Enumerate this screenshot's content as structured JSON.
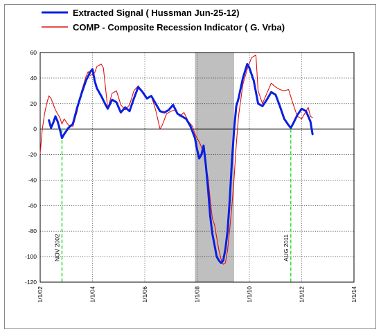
{
  "chart_data": {
    "type": "line",
    "title": "",
    "xlabel": "",
    "ylabel": "",
    "xlim": [
      "2002-01-01",
      "2014-01-01"
    ],
    "ylim": [
      -120,
      60
    ],
    "y_ticks": [
      60,
      40,
      20,
      0,
      -20,
      -40,
      -60,
      -80,
      -100,
      -120
    ],
    "x_ticks": [
      "2002-01-01",
      "2004-01-01",
      "2006-01-01",
      "2008-01-01",
      "2010-01-01",
      "2012-01-01",
      "2014-01-01"
    ],
    "x_tick_labels": [
      "1/1/02",
      "1/1/04",
      "1/1/06",
      "1/1/08",
      "1/1/10",
      "1/1/12",
      "1/1/14"
    ],
    "grid": true,
    "legend": "top-left",
    "recession_band": {
      "start": "2007-12-01",
      "end": "2009-06-01",
      "color": "#bfbfbf"
    },
    "annotations": [
      {
        "date": "2002-11-01",
        "label": "NOV 2002",
        "color": "#33dd33"
      },
      {
        "date": "2011-08-01",
        "label": "AUG 2011",
        "color": "#33dd33"
      }
    ],
    "series": [
      {
        "name": "Extracted Signal  ( Hussman Jun-25-12)",
        "color": "#0a1fe0",
        "points": [
          [
            "2002-05-01",
            7
          ],
          [
            "2002-06-01",
            1
          ],
          [
            "2002-07-01",
            5
          ],
          [
            "2002-08-01",
            10
          ],
          [
            "2002-09-01",
            6
          ],
          [
            "2002-10-01",
            0
          ],
          [
            "2002-11-01",
            -7
          ],
          [
            "2002-12-01",
            -4
          ],
          [
            "2003-02-01",
            1
          ],
          [
            "2003-04-01",
            4
          ],
          [
            "2003-06-01",
            17
          ],
          [
            "2003-08-01",
            28
          ],
          [
            "2003-10-01",
            38
          ],
          [
            "2003-12-01",
            45
          ],
          [
            "2004-01-01",
            47
          ],
          [
            "2004-02-01",
            38
          ],
          [
            "2004-03-01",
            32
          ],
          [
            "2004-05-01",
            26
          ],
          [
            "2004-07-01",
            19
          ],
          [
            "2004-08-01",
            16
          ],
          [
            "2004-10-01",
            23
          ],
          [
            "2004-12-01",
            21
          ],
          [
            "2005-02-01",
            13
          ],
          [
            "2005-04-01",
            17
          ],
          [
            "2005-06-01",
            14
          ],
          [
            "2005-08-01",
            24
          ],
          [
            "2005-10-01",
            33
          ],
          [
            "2005-12-01",
            29
          ],
          [
            "2006-02-01",
            24
          ],
          [
            "2006-04-01",
            26
          ],
          [
            "2006-06-01",
            20
          ],
          [
            "2006-08-01",
            14
          ],
          [
            "2006-10-01",
            13
          ],
          [
            "2006-12-01",
            15
          ],
          [
            "2007-02-01",
            19
          ],
          [
            "2007-04-01",
            12
          ],
          [
            "2007-06-01",
            10
          ],
          [
            "2007-08-01",
            8
          ],
          [
            "2007-10-01",
            2
          ],
          [
            "2007-12-01",
            -7
          ],
          [
            "2008-01-01",
            -16
          ],
          [
            "2008-02-01",
            -23
          ],
          [
            "2008-03-01",
            -20
          ],
          [
            "2008-04-01",
            -13
          ],
          [
            "2008-05-01",
            -28
          ],
          [
            "2008-06-01",
            -46
          ],
          [
            "2008-07-01",
            -68
          ],
          [
            "2008-08-01",
            -82
          ],
          [
            "2008-09-01",
            -91
          ],
          [
            "2008-10-01",
            -100
          ],
          [
            "2008-11-01",
            -103
          ],
          [
            "2008-12-01",
            -105
          ],
          [
            "2009-01-01",
            -103
          ],
          [
            "2009-02-01",
            -94
          ],
          [
            "2009-03-01",
            -80
          ],
          [
            "2009-04-01",
            -55
          ],
          [
            "2009-05-01",
            -25
          ],
          [
            "2009-06-01",
            0
          ],
          [
            "2009-07-01",
            18
          ],
          [
            "2009-08-01",
            24
          ],
          [
            "2009-10-01",
            40
          ],
          [
            "2009-12-01",
            51
          ],
          [
            "2010-01-01",
            48
          ],
          [
            "2010-03-01",
            38
          ],
          [
            "2010-05-01",
            20
          ],
          [
            "2010-07-01",
            18
          ],
          [
            "2010-09-01",
            23
          ],
          [
            "2010-11-01",
            29
          ],
          [
            "2011-01-01",
            27
          ],
          [
            "2011-03-01",
            18
          ],
          [
            "2011-05-01",
            8
          ],
          [
            "2011-07-01",
            3
          ],
          [
            "2011-08-01",
            1
          ],
          [
            "2011-09-01",
            4
          ],
          [
            "2011-11-01",
            11
          ],
          [
            "2012-01-01",
            16
          ],
          [
            "2012-03-01",
            14
          ],
          [
            "2012-05-01",
            6
          ],
          [
            "2012-06-01",
            -4
          ]
        ]
      },
      {
        "name": "COMP - Composite Recession Indicator  ( G. Vrba)",
        "color": "#e01010",
        "points": [
          [
            "2002-01-01",
            -19
          ],
          [
            "2002-02-01",
            0
          ],
          [
            "2002-03-01",
            12
          ],
          [
            "2002-04-01",
            20
          ],
          [
            "2002-05-01",
            26
          ],
          [
            "2002-06-01",
            24
          ],
          [
            "2002-08-01",
            15
          ],
          [
            "2002-10-01",
            9
          ],
          [
            "2002-11-01",
            4
          ],
          [
            "2002-12-01",
            8
          ],
          [
            "2003-02-01",
            3
          ],
          [
            "2003-04-01",
            2
          ],
          [
            "2003-06-01",
            14
          ],
          [
            "2003-08-01",
            30
          ],
          [
            "2003-10-01",
            41
          ],
          [
            "2003-11-01",
            45
          ],
          [
            "2003-12-01",
            42
          ],
          [
            "2004-02-01",
            44
          ],
          [
            "2004-03-01",
            49
          ],
          [
            "2004-05-01",
            51
          ],
          [
            "2004-06-01",
            48
          ],
          [
            "2004-07-01",
            32
          ],
          [
            "2004-08-01",
            16
          ],
          [
            "2004-10-01",
            28
          ],
          [
            "2004-12-01",
            30
          ],
          [
            "2005-02-01",
            19
          ],
          [
            "2005-04-01",
            15
          ],
          [
            "2005-06-01",
            19
          ],
          [
            "2005-08-01",
            30
          ],
          [
            "2005-10-01",
            34
          ],
          [
            "2005-12-01",
            28
          ],
          [
            "2006-02-01",
            24
          ],
          [
            "2006-04-01",
            26
          ],
          [
            "2006-06-01",
            15
          ],
          [
            "2006-08-01",
            0
          ],
          [
            "2006-09-01",
            3
          ],
          [
            "2006-11-01",
            12
          ],
          [
            "2007-01-01",
            14
          ],
          [
            "2007-03-01",
            15
          ],
          [
            "2007-05-01",
            10
          ],
          [
            "2007-07-01",
            13
          ],
          [
            "2007-09-01",
            6
          ],
          [
            "2007-11-01",
            2
          ],
          [
            "2007-12-01",
            -4
          ],
          [
            "2008-02-01",
            -10
          ],
          [
            "2008-04-01",
            -18
          ],
          [
            "2008-06-01",
            -38
          ],
          [
            "2008-07-01",
            -55
          ],
          [
            "2008-08-01",
            -70
          ],
          [
            "2008-09-01",
            -75
          ],
          [
            "2008-10-01",
            -85
          ],
          [
            "2008-11-01",
            -95
          ],
          [
            "2008-12-01",
            -102
          ],
          [
            "2009-01-01",
            -106
          ],
          [
            "2009-02-01",
            -105
          ],
          [
            "2009-03-01",
            -95
          ],
          [
            "2009-04-01",
            -78
          ],
          [
            "2009-05-01",
            -60
          ],
          [
            "2009-06-01",
            -38
          ],
          [
            "2009-07-01",
            -12
          ],
          [
            "2009-08-01",
            10
          ],
          [
            "2009-10-01",
            35
          ],
          [
            "2009-12-01",
            47
          ],
          [
            "2010-02-01",
            56
          ],
          [
            "2010-04-01",
            58
          ],
          [
            "2010-05-01",
            30
          ],
          [
            "2010-07-01",
            20
          ],
          [
            "2010-09-01",
            28
          ],
          [
            "2010-11-01",
            36
          ],
          [
            "2011-01-01",
            33
          ],
          [
            "2011-03-01",
            31
          ],
          [
            "2011-05-01",
            30
          ],
          [
            "2011-07-01",
            31
          ],
          [
            "2011-09-01",
            20
          ],
          [
            "2011-11-01",
            10
          ],
          [
            "2012-01-01",
            8
          ],
          [
            "2012-03-01",
            14
          ],
          [
            "2012-04-01",
            17
          ],
          [
            "2012-05-01",
            10
          ],
          [
            "2012-06-01",
            9
          ]
        ]
      }
    ]
  }
}
